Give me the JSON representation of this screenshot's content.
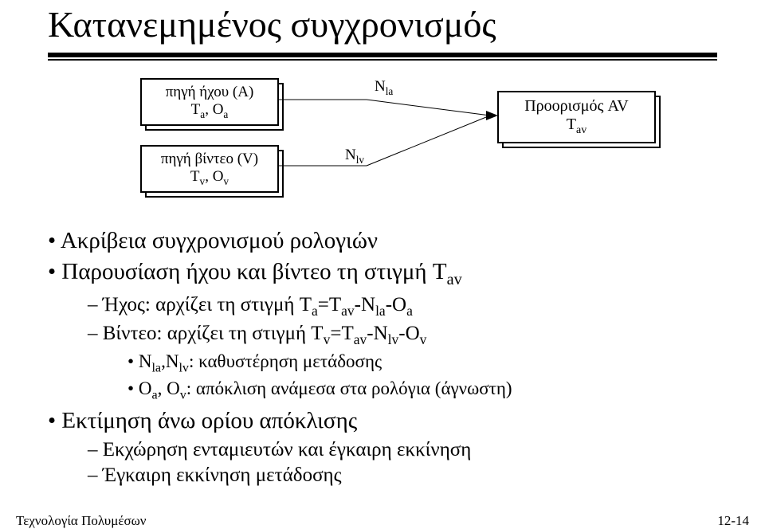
{
  "title": "Κατανεμημένος συγχρονισμός",
  "diagram": {
    "src_audio_l1": "πηγή ήχου (A)",
    "src_audio_l2": "T<sub>a</sub>, O<sub>a</sub>",
    "src_video_l1": "πηγή βίντεο (V)",
    "src_video_l2": "T<sub>v</sub>, O<sub>v</sub>",
    "dest_l1": "Προορισμός AV",
    "dest_l2": "T<sub>av</sub>",
    "label_nla": "N<sub>la</sub>",
    "label_nlv": "N<sub>lv</sub>"
  },
  "bullets": {
    "b1": "Ακρίβεια συγχρονισμού ρολογιών",
    "b2": "Παρουσίαση ήχου και βίντεο τη στιγμή T<sub>av</sub>",
    "b2d1": "Ήχος: αρχίζει τη στιγμή T<sub>a</sub>=T<sub>av</sub>-N<sub>la</sub>-O<sub>a</sub>",
    "b2d2": "Βίντεο: αρχίζει τη στιγμή T<sub>v</sub>=T<sub>av</sub>-N<sub>lv</sub>-O<sub>v</sub>",
    "b2d2s1": "N<sub>la</sub>,N<sub>lv</sub>: καθυστέρηση μετάδοσης",
    "b2d2s2": "O<sub>a</sub>, O<sub>v</sub>: απόκλιση ανάμεσα στα ρολόγια (άγνωστη)",
    "b3": "Εκτίμηση άνω ορίου απόκλισης",
    "b3d1": "Εκχώρηση ενταμιευτών και έγκαιρη εκκίνηση",
    "b3d2": "Έγκαιρη εκκίνηση μετάδοσης"
  },
  "footer": {
    "left": "Τεχνολογία Πολυμέσων",
    "right": "12-14"
  }
}
